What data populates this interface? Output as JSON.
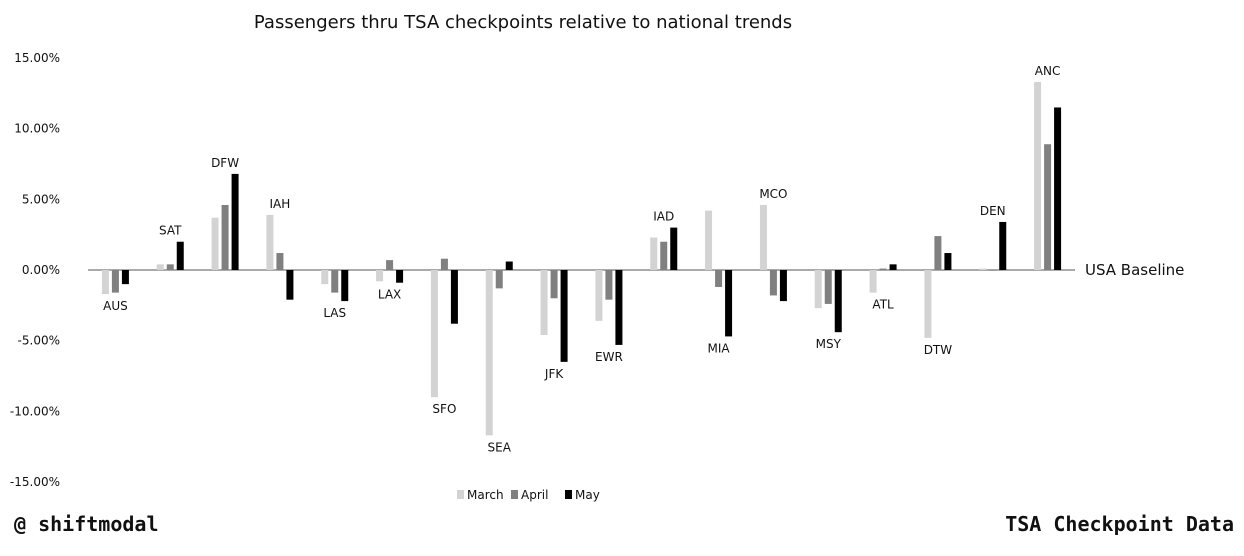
{
  "chart_data": {
    "type": "bar",
    "title": "Passengers thru TSA checkpoints relative to national trends",
    "baseline_label": "USA Baseline",
    "ylim": [
      -15,
      15
    ],
    "yticks": [
      15,
      10,
      5,
      0,
      -5,
      -10,
      -15
    ],
    "ytick_labels": [
      "15.00%",
      "10.00%",
      "5.00%",
      "0.00%",
      "-5.00%",
      "-10.00%",
      "-15.00%"
    ],
    "grid": false,
    "legend_placement": "bottom-center",
    "categories": [
      "AUS",
      "SAT",
      "DFW",
      "IAH",
      "LAS",
      "LAX",
      "SFO",
      "SEA",
      "JFK",
      "EWR",
      "IAD",
      "MIA",
      "MCO",
      "MSY",
      "ATL",
      "DTW",
      "DEN",
      "ANC"
    ],
    "series": [
      {
        "name": "March",
        "color": "#d3d3d3",
        "values": [
          -1.7,
          0.4,
          3.7,
          3.9,
          -1.0,
          -0.8,
          -9.0,
          -11.7,
          -4.6,
          -3.6,
          2.3,
          4.2,
          4.6,
          -2.7,
          -1.6,
          -4.8,
          0.1,
          13.3
        ]
      },
      {
        "name": "April",
        "color": "#808080",
        "values": [
          -1.6,
          0.4,
          4.6,
          1.2,
          -1.6,
          0.7,
          0.8,
          -1.3,
          -2.0,
          -2.1,
          2.0,
          -1.2,
          -1.8,
          -2.4,
          0.1,
          2.4,
          0.0,
          8.9
        ]
      },
      {
        "name": "May",
        "color": "#000000",
        "values": [
          -1.0,
          2.0,
          6.8,
          -2.1,
          -2.2,
          -0.9,
          -3.8,
          0.6,
          -6.5,
          -5.3,
          3.0,
          -4.7,
          -2.2,
          -4.4,
          0.4,
          1.2,
          3.4,
          11.5
        ]
      }
    ]
  },
  "footer": {
    "left": "@ shiftmodal",
    "right": "TSA Checkpoint Data"
  }
}
